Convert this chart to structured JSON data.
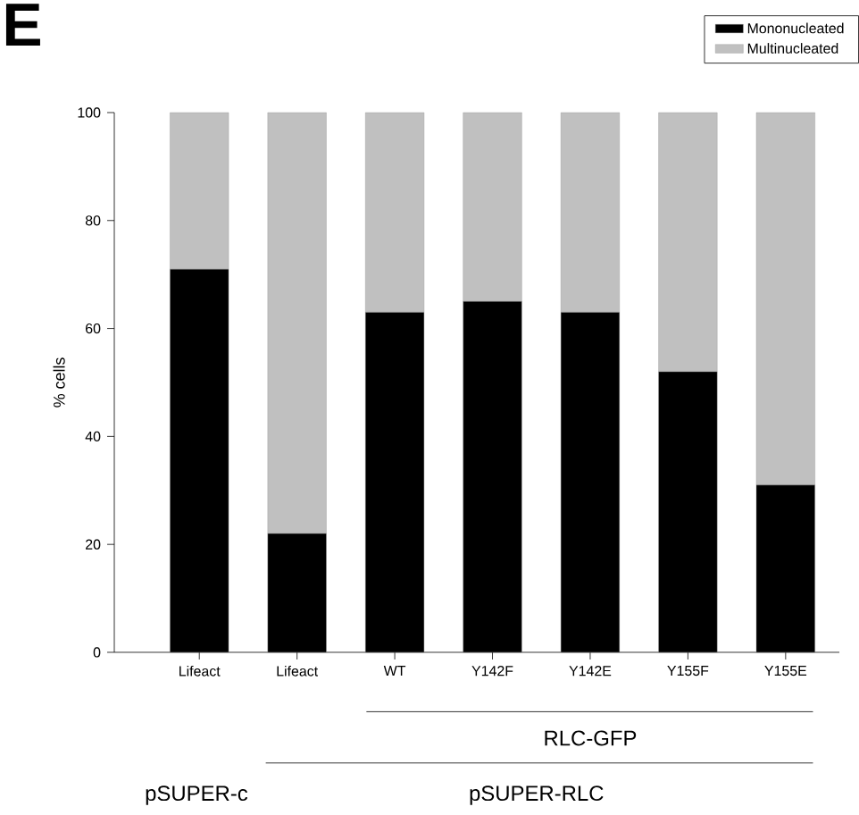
{
  "chart_data": {
    "type": "bar",
    "title": "E",
    "ylabel": "% cells",
    "stacked": true,
    "categories": [
      "Lifeact",
      "Lifeact",
      "WT",
      "Y142F",
      "Y142E",
      "Y155F",
      "Y155E"
    ],
    "series": [
      {
        "name": "Mononucleated",
        "color": "#000000",
        "values": [
          71,
          22,
          63,
          65,
          63,
          52,
          31
        ]
      },
      {
        "name": "Multinucleated",
        "color": "#c0c0c0",
        "values": [
          29,
          78,
          37,
          35,
          37,
          48,
          69
        ]
      }
    ],
    "ylim": [
      0,
      100
    ],
    "yticks": [
      0,
      20,
      40,
      60,
      80,
      100
    ],
    "grid": false,
    "legend": "top right",
    "annotations": [
      "RLC-GFP",
      "pSUPER-c",
      "pSUPER-RLC"
    ]
  }
}
